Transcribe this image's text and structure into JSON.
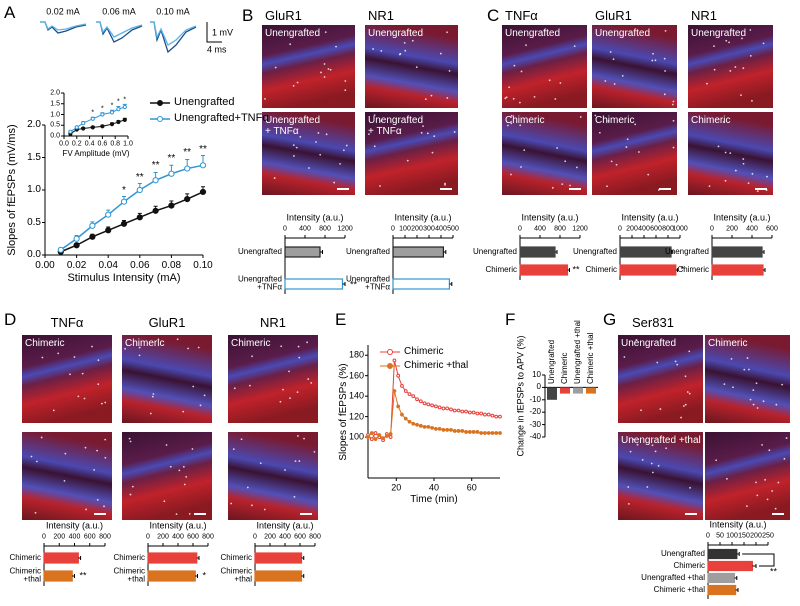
{
  "panel_labels": [
    "A",
    "B",
    "C",
    "D",
    "E",
    "F",
    "G"
  ],
  "traces": {
    "stimuli": [
      "0.02 mA",
      "0.06 mA",
      "0.10 mA"
    ],
    "scale_y": "1 mV",
    "scale_x": "4 ms"
  },
  "micrographs": {
    "B": {
      "columns": [
        "GluR1",
        "NR1"
      ],
      "labels": [
        [
          "Unengrafted",
          "Unengrafted"
        ],
        [
          "Unengrafted\n+ TNFα",
          "Unengrafted\n+ TNFα"
        ]
      ]
    },
    "C": {
      "columns": [
        "TNFα",
        "GluR1",
        "NR1"
      ],
      "labels": [
        [
          "Unengrafted",
          "Unengrafted",
          "Unengrafted"
        ],
        [
          "Chimeric",
          "Chimeric",
          "Chimeric"
        ]
      ]
    },
    "D": {
      "columns": [
        "TNFα",
        "GluR1",
        "NR1"
      ],
      "labels": [
        [
          "Chimeric",
          "Chimeric",
          "Chimeric"
        ]
      ]
    },
    "G": {
      "columns": [
        "Ser831"
      ],
      "labels": [
        [
          "Unengrafted",
          "Chimeric"
        ],
        [
          "Unengrafted +thal"
        ]
      ]
    }
  },
  "chart_data": [
    {
      "type": "line",
      "x": [
        0.01,
        0.02,
        0.03,
        0.04,
        0.05,
        0.06,
        0.07,
        0.08,
        0.09,
        0.1
      ],
      "series": [
        {
          "name": "Unengrafted",
          "color": "#111111",
          "marker": "filled",
          "values": [
            0.05,
            0.15,
            0.28,
            0.38,
            0.48,
            0.58,
            0.68,
            0.76,
            0.86,
            0.97
          ],
          "errors": [
            0.02,
            0.03,
            0.04,
            0.05,
            0.05,
            0.06,
            0.07,
            0.07,
            0.08,
            0.08
          ]
        },
        {
          "name": "Unengrafted+TNFα",
          "color": "#2f95d4",
          "marker": "open",
          "values": [
            0.08,
            0.25,
            0.45,
            0.62,
            0.82,
            1.0,
            1.15,
            1.25,
            1.33,
            1.38
          ],
          "errors": [
            0.03,
            0.05,
            0.06,
            0.07,
            0.08,
            0.1,
            0.12,
            0.13,
            0.14,
            0.15
          ],
          "significance": [
            null,
            null,
            null,
            null,
            "*",
            "**",
            "**",
            "**",
            "**",
            "**"
          ]
        }
      ],
      "xlim": [
        0,
        0.1
      ],
      "xticks": [
        {
          "value": 0,
          "label": "0.00"
        },
        0.02,
        0.04,
        0.06,
        0.08,
        {
          "value": 0.1,
          "label": "0.10"
        }
      ],
      "ylim": [
        0,
        2
      ],
      "yticks": [
        {
          "value": 0,
          "label": "0.0"
        },
        0.5,
        {
          "value": 1,
          "label": "1.0"
        },
        1.5,
        {
          "value": 2,
          "label": "2.0"
        }
      ],
      "xlabel": "Stimulus Intensity (mA)",
      "ylabel": "Slopes of fEPSPs (mV/ms)"
    },
    {
      "type": "line",
      "x": [
        0.1,
        0.2,
        0.3,
        0.45,
        0.6,
        0.75,
        0.85,
        0.95
      ],
      "series": [
        {
          "color": "#111111",
          "marker": "filled",
          "values": [
            0.1,
            0.3,
            0.35,
            0.4,
            0.45,
            0.55,
            0.65,
            0.75
          ],
          "errors": [
            0.03,
            0.04,
            0.04,
            0.05,
            0.05,
            0.06,
            0.06,
            0.07
          ]
        },
        {
          "color": "#2f95d4",
          "marker": "open",
          "values": [
            0.2,
            0.4,
            0.6,
            0.8,
            1.0,
            1.1,
            1.25,
            1.35
          ],
          "errors": [
            0.04,
            0.05,
            0.06,
            0.07,
            0.08,
            0.1,
            0.12,
            0.12
          ],
          "significance": [
            null,
            null,
            null,
            "*",
            "*",
            "*",
            "*",
            "*"
          ]
        }
      ],
      "xlim": [
        0,
        1
      ],
      "xticks": [
        {
          "value": 0,
          "label": "0.0"
        },
        0.2,
        0.4,
        0.6,
        0.8,
        {
          "value": 1,
          "label": "1.0"
        }
      ],
      "ylim": [
        0,
        2
      ],
      "yticks": [
        {
          "value": 0,
          "label": "0.0"
        },
        0.5,
        {
          "value": 1,
          "label": "1.0"
        },
        1.5,
        {
          "value": 2,
          "label": "2.0"
        }
      ],
      "xlabel": "FV Amplitude (mV)"
    },
    {
      "type": "hbar",
      "title": "Intensity (a.u.)",
      "categories": [
        "Unengrafted",
        "Unengrafted\n+TNFα"
      ],
      "values": [
        700,
        1150
      ],
      "errors": [
        50,
        50
      ],
      "colors": [
        "#9e9e9e",
        "#ffffff"
      ],
      "edge_colors": [
        "#222222",
        "#2f95d4"
      ],
      "significance": [
        null,
        "**"
      ],
      "xlim": [
        0,
        1200
      ],
      "xticks": [
        0,
        400,
        800,
        1200
      ]
    },
    {
      "type": "hbar",
      "title": "Intensity (a.u.)",
      "categories": [
        "Unengrafted",
        "Unengrafted\n+TNFα"
      ],
      "values": [
        420,
        470
      ],
      "errors": [
        20,
        20
      ],
      "colors": [
        "#9e9e9e",
        "#ffffff"
      ],
      "edge_colors": [
        "#222222",
        "#2f95d4"
      ],
      "xlim": [
        0,
        500
      ],
      "xticks": [
        0,
        100,
        200,
        300,
        400,
        500
      ]
    },
    {
      "type": "hbar",
      "title": "Intensity (a.u.)",
      "categories": [
        "Unengrafted",
        "Chimeric"
      ],
      "values": [
        700,
        950
      ],
      "errors": [
        40,
        40
      ],
      "colors": [
        "#444444",
        "#e8403a"
      ],
      "significance": [
        null,
        "**"
      ],
      "xlim": [
        0,
        1200
      ],
      "xticks": [
        0,
        400,
        800,
        1200
      ]
    },
    {
      "type": "hbar",
      "title": "Intensity (a.u.)",
      "categories": [
        "Unengrafted",
        "Chimeric"
      ],
      "values": [
        850,
        930
      ],
      "errors": [
        30,
        30
      ],
      "colors": [
        "#444444",
        "#e8403a"
      ],
      "significance": [
        null,
        "*"
      ],
      "xlim": [
        0,
        1000
      ],
      "xticks": [
        0,
        200,
        400,
        600,
        800,
        1000
      ]
    },
    {
      "type": "hbar",
      "title": "Intensity (a.u.)",
      "categories": [
        "Unengrafted",
        "Chimeric"
      ],
      "values": [
        500,
        510
      ],
      "errors": [
        20,
        20
      ],
      "colors": [
        "#444444",
        "#e8403a"
      ],
      "xlim": [
        0,
        600
      ],
      "xticks": [
        0,
        200,
        400,
        600
      ]
    },
    {
      "type": "hbar",
      "title": "Intensity (a.u.)",
      "categories": [
        "Chimeric",
        "Chimeric\n+thal"
      ],
      "values": [
        450,
        370
      ],
      "errors": [
        30,
        30
      ],
      "colors": [
        "#e8403a",
        "#d9731f"
      ],
      "significance": [
        null,
        "**"
      ],
      "xlim": [
        0,
        800
      ],
      "xticks": [
        0,
        200,
        400,
        600,
        800
      ]
    },
    {
      "type": "hbar",
      "title": "Intensity (a.u.)",
      "categories": [
        "Chimeric",
        "Chimeric\n+thal"
      ],
      "values": [
        650,
        630
      ],
      "errors": [
        30,
        30
      ],
      "colors": [
        "#e8403a",
        "#d9731f"
      ],
      "significance": [
        null,
        "*"
      ],
      "xlim": [
        0,
        800
      ],
      "xticks": [
        0,
        200,
        400,
        600,
        800
      ]
    },
    {
      "type": "hbar",
      "title": "Intensity (a.u.)",
      "categories": [
        "Chimeric",
        "Chimeric\n+thal"
      ],
      "values": [
        620,
        620
      ],
      "errors": [
        30,
        30
      ],
      "colors": [
        "#e8403a",
        "#d9731f"
      ],
      "xlim": [
        0,
        800
      ],
      "xticks": [
        0,
        200,
        400,
        600,
        800
      ]
    },
    {
      "type": "line",
      "x": [
        5,
        7,
        9,
        11,
        13,
        15,
        17,
        19,
        21,
        23,
        25,
        27,
        29,
        31,
        33,
        35,
        37,
        39,
        41,
        43,
        45,
        47,
        49,
        51,
        53,
        55,
        57,
        59,
        61,
        63,
        65,
        67,
        69,
        71,
        73,
        75
      ],
      "series": [
        {
          "name": "Chimeric",
          "color": "#e8403a",
          "marker": "open",
          "values": [
            102,
            98,
            104,
            100,
            97,
            103,
            100,
            175,
            160,
            150,
            145,
            142,
            140,
            137,
            135,
            133,
            132,
            131,
            130,
            129,
            128,
            128,
            127,
            126,
            126,
            125,
            125,
            124,
            124,
            123,
            123,
            122,
            122,
            121,
            120,
            120
          ]
        },
        {
          "name": "Chimeric +thal",
          "color": "#d9731f",
          "marker": "filled",
          "values": [
            100,
            104,
            98,
            102,
            99,
            101,
            103,
            145,
            130,
            122,
            118,
            115,
            113,
            112,
            111,
            110,
            110,
            109,
            108,
            108,
            107,
            107,
            107,
            106,
            106,
            106,
            105,
            105,
            105,
            105,
            104,
            104,
            104,
            104,
            104,
            104
          ]
        }
      ],
      "xlim": [
        5,
        75
      ],
      "xticks": [
        20,
        40,
        60
      ],
      "ylim": [
        60,
        190
      ],
      "yticks": [
        100,
        120,
        140,
        160,
        180
      ],
      "xlabel": "Time (min)",
      "ylabel": "Slopes of fEPSPs (%)"
    },
    {
      "type": "bar",
      "categories": [
        "Unengrafted",
        "Chimeric",
        "Unengrafted +thal",
        "Chimeric +thal"
      ],
      "values": [
        -10,
        -5,
        -5,
        -5
      ],
      "colors": [
        "#444444",
        "#e8403a",
        "#9e9e9e",
        "#d9731f"
      ],
      "ylim": [
        -40,
        10
      ],
      "yticks": [
        10,
        0,
        -10,
        -20,
        -30,
        -40
      ],
      "ylabel": "Change in fEPSPs to APV (%)"
    },
    {
      "type": "hbar",
      "title": "Intensity (a.u.)",
      "categories": [
        "Unengrafted",
        "Chimeric",
        "Unengrafted +thal",
        "Chimeric +thal"
      ],
      "values": [
        120,
        185,
        110,
        115
      ],
      "errors": [
        10,
        15,
        10,
        10
      ],
      "colors": [
        "#333333",
        "#e8403a",
        "#9e9e9e",
        "#d9731f"
      ],
      "significance": [
        null,
        "**",
        null,
        null
      ],
      "xlim": [
        0,
        250
      ],
      "xticks": [
        0,
        50,
        100,
        150,
        200,
        250
      ]
    }
  ]
}
